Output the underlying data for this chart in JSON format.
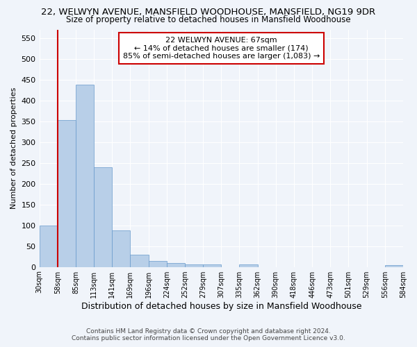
{
  "title_line1": "22, WELWYN AVENUE, MANSFIELD WOODHOUSE, MANSFIELD, NG19 9DR",
  "title_line2": "Size of property relative to detached houses in Mansfield Woodhouse",
  "xlabel": "Distribution of detached houses by size in Mansfield Woodhouse",
  "ylabel": "Number of detached properties",
  "footer_line1": "Contains HM Land Registry data © Crown copyright and database right 2024.",
  "footer_line2": "Contains public sector information licensed under the Open Government Licence v3.0.",
  "annotation_line1": "22 WELWYN AVENUE: 67sqm",
  "annotation_line2": "← 14% of detached houses are smaller (174)",
  "annotation_line3": "85% of semi-detached houses are larger (1,083) →",
  "bar_values": [
    100,
    352,
    438,
    240,
    88,
    29,
    14,
    9,
    6,
    6,
    0,
    6,
    0,
    0,
    0,
    0,
    0,
    0,
    0,
    5
  ],
  "categories": [
    "30sqm",
    "58sqm",
    "85sqm",
    "113sqm",
    "141sqm",
    "169sqm",
    "196sqm",
    "224sqm",
    "252sqm",
    "279sqm",
    "307sqm",
    "335sqm",
    "362sqm",
    "390sqm",
    "418sqm",
    "446sqm",
    "473sqm",
    "501sqm",
    "529sqm",
    "556sqm",
    "584sqm"
  ],
  "bar_color": "#b8cfe8",
  "bar_edge_color": "#6699cc",
  "vline_x": 1,
  "vline_color": "#cc0000",
  "ylim": [
    0,
    570
  ],
  "yticks": [
    0,
    50,
    100,
    150,
    200,
    250,
    300,
    350,
    400,
    450,
    500,
    550
  ],
  "bg_color": "#f0f4fa",
  "plot_bg_color": "#f0f4fa",
  "grid_color": "#ffffff",
  "annotation_box_facecolor": "#ffffff",
  "annotation_box_edgecolor": "#cc0000",
  "title1_fontsize": 9.5,
  "title2_fontsize": 8.5,
  "ylabel_fontsize": 8,
  "xlabel_fontsize": 9,
  "footer_fontsize": 6.5,
  "annotation_fontsize": 8
}
